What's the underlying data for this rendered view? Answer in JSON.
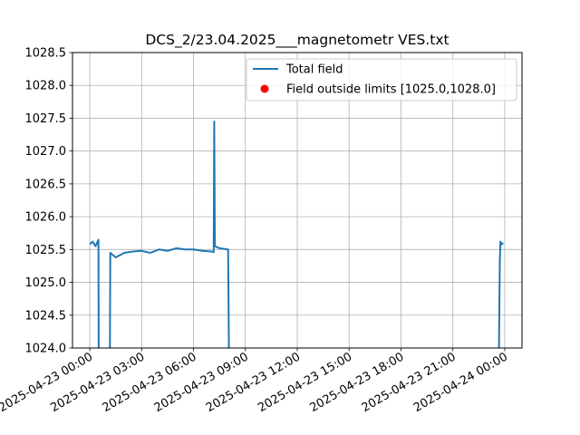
{
  "chart_data": {
    "type": "line",
    "title": "DCS_2/23.04.2025___magnetometr VES.txt",
    "xlabel": "",
    "ylabel": "",
    "x_axis_type": "datetime",
    "xlim": [
      "2025-04-22 23:00",
      "2025-04-24 01:00"
    ],
    "ylim": [
      1024.0,
      1028.5
    ],
    "grid": true,
    "legend_placement": "upper right",
    "x_ticks": [
      "2025-04-23 00:00",
      "2025-04-23 03:00",
      "2025-04-23 06:00",
      "2025-04-23 09:00",
      "2025-04-23 12:00",
      "2025-04-23 15:00",
      "2025-04-23 18:00",
      "2025-04-23 21:00",
      "2025-04-24 00:00"
    ],
    "y_ticks": [
      "1024.0",
      "1024.5",
      "1025.0",
      "1025.5",
      "1026.0",
      "1026.5",
      "1027.0",
      "1027.5",
      "1028.0",
      "1028.5"
    ],
    "series": [
      {
        "name": "Total field",
        "color": "#1f77b4",
        "kind": "line",
        "segments": [
          [
            [
              "2025-04-23 00:00",
              1025.58
            ],
            [
              "2025-04-23 00:10",
              1025.62
            ],
            [
              "2025-04-23 00:20",
              1025.55
            ],
            [
              "2025-04-23 00:30",
              1025.65
            ],
            [
              "2025-04-23 00:31",
              1024.0
            ]
          ],
          [
            [
              "2025-04-23 01:10",
              1024.0
            ],
            [
              "2025-04-23 01:11",
              1025.45
            ],
            [
              "2025-04-23 01:30",
              1025.38
            ],
            [
              "2025-04-23 02:00",
              1025.45
            ],
            [
              "2025-04-23 02:30",
              1025.47
            ],
            [
              "2025-04-23 03:00",
              1025.48
            ],
            [
              "2025-04-23 03:30",
              1025.45
            ],
            [
              "2025-04-23 04:00",
              1025.5
            ],
            [
              "2025-04-23 04:30",
              1025.48
            ],
            [
              "2025-04-23 05:00",
              1025.52
            ],
            [
              "2025-04-23 05:30",
              1025.5
            ],
            [
              "2025-04-23 06:00",
              1025.5
            ],
            [
              "2025-04-23 06:30",
              1025.48
            ],
            [
              "2025-04-23 07:00",
              1025.47
            ],
            [
              "2025-04-23 07:10",
              1025.46
            ],
            [
              "2025-04-23 07:12",
              1027.45
            ],
            [
              "2025-04-23 07:14",
              1025.55
            ],
            [
              "2025-04-23 07:30",
              1025.52
            ],
            [
              "2025-04-23 08:00",
              1025.5
            ],
            [
              "2025-04-23 08:03",
              1024.0
            ]
          ],
          [
            [
              "2025-04-23 23:40",
              1024.0
            ],
            [
              "2025-04-23 23:43",
              1025.3
            ],
            [
              "2025-04-23 23:45",
              1025.62
            ],
            [
              "2025-04-23 23:50",
              1025.58
            ],
            [
              "2025-04-23 23:55",
              1025.6
            ]
          ]
        ]
      },
      {
        "name": "Field outside limits [1025.0,1028.0]",
        "color": "#ff0000",
        "kind": "scatter",
        "points": []
      }
    ]
  }
}
